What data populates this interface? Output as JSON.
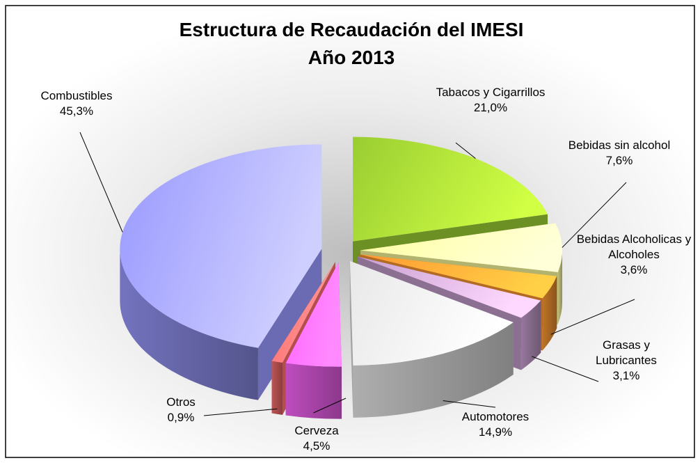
{
  "chart_data": {
    "type": "pie3d",
    "title": "Estructura de Recaudación del IMESI",
    "subtitle": "Año 2013",
    "categories": [
      "Tabacos y Cigarrillos",
      "Bebidas sin alcohol",
      "Bebidas Alcoholicas y Alcoholes",
      "Grasas y Lubricantes",
      "Automotores",
      "Cerveza",
      "Otros",
      "Combustibles"
    ],
    "values": [
      21.0,
      7.6,
      3.6,
      3.1,
      14.9,
      4.5,
      0.9,
      45.3
    ],
    "value_labels": [
      "21,0%",
      "7,6%",
      "3,6%",
      "3,1%",
      "14,9%",
      "4,5%",
      "0,9%",
      "45,3%"
    ],
    "colors": [
      "#9acd32",
      "#ffffa0",
      "#ff9933",
      "#c8a0d0",
      "#e8e8e8",
      "#ff66ff",
      "#ff7070",
      "#9999ff"
    ]
  }
}
